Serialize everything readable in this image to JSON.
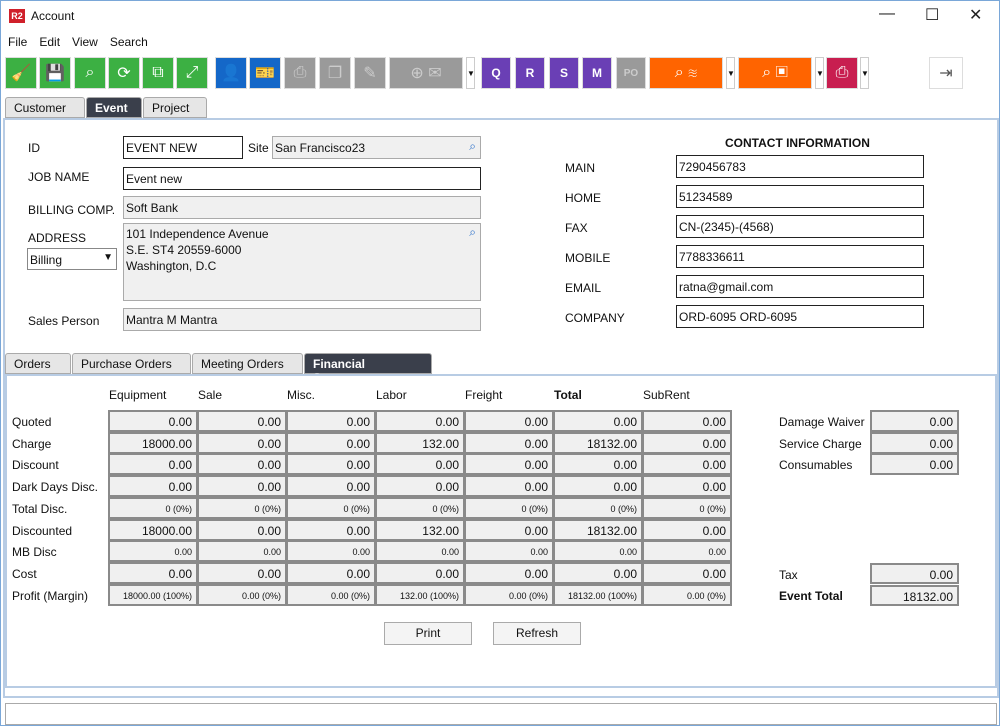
{
  "window": {
    "title": "Account",
    "logo": "R2",
    "minimize": "—",
    "maximize": "☐",
    "close": "✕"
  },
  "menu": [
    "File",
    "Edit",
    "View",
    "Search"
  ],
  "toolbar": {
    "icons": [
      "broom-icon",
      "save-icon",
      "search-icon",
      "refresh-icon",
      "hierarchy-icon",
      "expand-icon",
      "user-icon",
      "ticket-icon",
      "fax-icon",
      "copy-icon",
      "edit-icon",
      "add-mail-icon",
      "quote-doc-icon",
      "r-doc-icon",
      "s-doc-icon",
      "m-doc-icon",
      "po-doc-icon",
      "search-stack-icon",
      "search-box-icon",
      "print-icon",
      "exit-icon"
    ],
    "doc_letters": [
      "Q",
      "R",
      "S",
      "M",
      "PO"
    ]
  },
  "top_tabs": [
    {
      "label": "Customer",
      "active": false
    },
    {
      "label": "Event",
      "active": true
    },
    {
      "label": "Project",
      "active": false
    }
  ],
  "form": {
    "id_label": "ID",
    "id": "EVENT NEW",
    "site_label": "Site",
    "site": "San Francisco23",
    "job_label": "JOB NAME",
    "job": "Event new",
    "billing_label": "BILLING COMP.",
    "billing": "Soft Bank",
    "address_label": "ADDRESS",
    "address_type": "Billing",
    "address": [
      "101 Independence Avenue",
      "S.E. ST4 20559-6000",
      "Washington, D.C"
    ],
    "sales_label": "Sales Person",
    "sales": "Mantra M Mantra"
  },
  "contact": {
    "title": "CONTACT INFORMATION",
    "rows": [
      {
        "label": "MAIN",
        "value": "7290456783"
      },
      {
        "label": "HOME",
        "value": "51234589"
      },
      {
        "label": "FAX",
        "value": "CN-(2345)-(4568)"
      },
      {
        "label": "MOBILE",
        "value": "7788336611"
      },
      {
        "label": "EMAIL",
        "value": "ratna@gmail.com"
      },
      {
        "label": "COMPANY",
        "value": "ORD-6095 ORD-6095"
      }
    ]
  },
  "sub_tabs": [
    {
      "label": "Orders",
      "active": false
    },
    {
      "label": "Purchase Orders",
      "active": false
    },
    {
      "label": "Meeting Orders",
      "active": false
    },
    {
      "label": "Financial Summary",
      "active": true
    }
  ],
  "financial": {
    "columns": [
      "Equipment",
      "Sale",
      "Misc.",
      "Labor",
      "Freight",
      "Total",
      "SubRent"
    ],
    "rows": [
      {
        "label": "Quoted",
        "small": false,
        "values": [
          "0.00",
          "0.00",
          "0.00",
          "0.00",
          "0.00",
          "0.00",
          "0.00"
        ]
      },
      {
        "label": "Charge",
        "small": false,
        "values": [
          "18000.00",
          "0.00",
          "0.00",
          "132.00",
          "0.00",
          "18132.00",
          "0.00"
        ]
      },
      {
        "label": "Discount",
        "small": false,
        "values": [
          "0.00",
          "0.00",
          "0.00",
          "0.00",
          "0.00",
          "0.00",
          "0.00"
        ]
      },
      {
        "label": "Dark Days Disc.",
        "small": false,
        "values": [
          "0.00",
          "0.00",
          "0.00",
          "0.00",
          "0.00",
          "0.00",
          "0.00"
        ]
      },
      {
        "label": "Total Disc.",
        "small": true,
        "values": [
          "0 (0%)",
          "0 (0%)",
          "0 (0%)",
          "0 (0%)",
          "0 (0%)",
          "0 (0%)",
          "0 (0%)"
        ]
      },
      {
        "label": "Discounted",
        "small": false,
        "values": [
          "18000.00",
          "0.00",
          "0.00",
          "132.00",
          "0.00",
          "18132.00",
          "0.00"
        ]
      },
      {
        "label": "MB Disc",
        "small": true,
        "values": [
          "0.00",
          "0.00",
          "0.00",
          "0.00",
          "0.00",
          "0.00",
          "0.00"
        ]
      },
      {
        "label": "Cost",
        "small": false,
        "values": [
          "0.00",
          "0.00",
          "0.00",
          "0.00",
          "0.00",
          "0.00",
          "0.00"
        ]
      },
      {
        "label": "Profit (Margin)",
        "small": true,
        "values": [
          "18000.00 (100%)",
          "0.00 (0%)",
          "0.00 (0%)",
          "132.00 (100%)",
          "0.00 (0%)",
          "18132.00 (100%)",
          "0.00 (0%)"
        ]
      }
    ],
    "extras": [
      {
        "label": "Damage Waiver",
        "value": "0.00"
      },
      {
        "label": "Service Charge",
        "value": "0.00"
      },
      {
        "label": "Consumables",
        "value": "0.00"
      }
    ],
    "tax_label": "Tax",
    "tax": "0.00",
    "event_total_label": "Event Total",
    "event_total": "18132.00",
    "print": "Print",
    "refresh": "Refresh"
  }
}
